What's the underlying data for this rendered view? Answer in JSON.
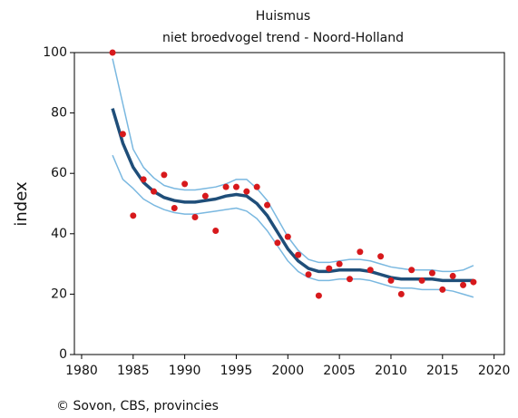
{
  "chart_data": {
    "type": "line",
    "title": "Huismus",
    "subtitle": "niet broedvogel trend - Noord-Holland",
    "y_label": "index",
    "source": "© Sovon, CBS, provincies",
    "x": [
      1983,
      1984,
      1985,
      1986,
      1987,
      1988,
      1989,
      1990,
      1991,
      1992,
      1993,
      1994,
      1995,
      1996,
      1997,
      1998,
      1999,
      2000,
      2001,
      2002,
      2003,
      2004,
      2005,
      2006,
      2007,
      2008,
      2009,
      2010,
      2011,
      2012,
      2013,
      2014,
      2015,
      2016,
      2017,
      2018
    ],
    "series": [
      {
        "mode": "line",
        "color": "#7ab8e0",
        "line_width": 1.5,
        "values": [
          98,
          83,
          68,
          62,
          58.5,
          56,
          55,
          54.5,
          54.5,
          55,
          55.5,
          56.5,
          58,
          58,
          55,
          51,
          45,
          39,
          34.5,
          31.5,
          30.5,
          30.5,
          31,
          31.5,
          31.5,
          31,
          30,
          29,
          28.5,
          28,
          28,
          28,
          27.5,
          27.5,
          28,
          29.5
        ]
      },
      {
        "mode": "line",
        "color": "#7ab8e0",
        "line_width": 1.5,
        "values": [
          66,
          58,
          55,
          51.5,
          49.5,
          48,
          47,
          46.5,
          46.5,
          47,
          47.5,
          48,
          48.5,
          47.5,
          45,
          41,
          36,
          31,
          27.5,
          25.5,
          24.5,
          24.5,
          25,
          25,
          25,
          24.5,
          23.5,
          22.5,
          22,
          22,
          21.5,
          21.5,
          21.5,
          21,
          20,
          19
        ]
      },
      {
        "mode": "line",
        "color": "#1f4e79",
        "line_width": 3.5,
        "values": [
          81.5,
          70,
          62,
          57,
          54,
          52,
          51,
          50.5,
          50.5,
          51,
          51.5,
          52.5,
          53,
          52.5,
          50,
          46,
          40.5,
          35,
          31,
          28.5,
          27.5,
          27.5,
          28,
          28,
          28,
          27.5,
          26.5,
          25.5,
          25,
          25,
          25,
          25,
          24.5,
          24.5,
          24.5,
          24.5
        ]
      },
      {
        "mode": "markers",
        "color": "#d7191c",
        "values": [
          100,
          73,
          46,
          58,
          54,
          59.5,
          48.5,
          56.5,
          45.5,
          52.5,
          41,
          55.5,
          55.5,
          54,
          55.5,
          49.5,
          37,
          39,
          33,
          26.5,
          19.5,
          28.5,
          30,
          25,
          34,
          28,
          32.5,
          24.5,
          20,
          28,
          24.5,
          27,
          21.5,
          26,
          23,
          24
        ]
      }
    ],
    "xlim": [
      1979.3,
      2021
    ],
    "xticks": [
      1980,
      1985,
      1990,
      1995,
      2000,
      2005,
      2010,
      2015,
      2020
    ],
    "ylim": [
      0,
      100
    ],
    "yticks": [
      0,
      20,
      40,
      60,
      80,
      100
    ]
  }
}
